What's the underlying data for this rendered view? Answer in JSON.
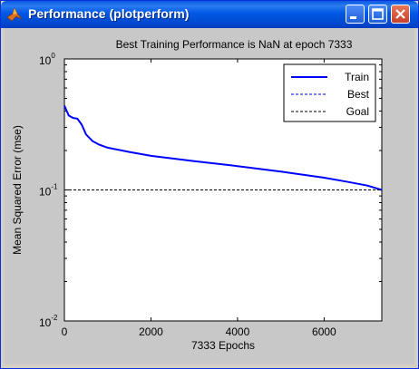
{
  "window": {
    "title": "Performance (plotperform)",
    "buttons": [
      "minimize",
      "maximize",
      "close"
    ]
  },
  "chart_data": {
    "type": "line",
    "title": "Best Training Performance is NaN at epoch 7333",
    "xlabel": "7333 Epochs",
    "ylabel": "Mean Squared Error  (mse)",
    "xlim": [
      0,
      7333
    ],
    "ylim": [
      0.01,
      1
    ],
    "yscale": "log",
    "x_ticks": [
      0,
      2000,
      4000,
      6000
    ],
    "x_tick_labels": [
      "0",
      "2000",
      "4000",
      "6000"
    ],
    "y_ticks": [
      0.01,
      0.1,
      1
    ],
    "y_tick_labels": [
      {
        "base": "10",
        "exp": "-2"
      },
      {
        "base": "10",
        "exp": "-1"
      },
      {
        "base": "10",
        "exp": "0"
      }
    ],
    "grid": false,
    "legend_position": "top-right",
    "series": [
      {
        "name": "Train",
        "color": "#0000ff",
        "style": "solid",
        "x": [
          0,
          100,
          200,
          300,
          400,
          500,
          650,
          800,
          1000,
          1500,
          2000,
          3000,
          4000,
          5000,
          6000,
          6500,
          7000,
          7333
        ],
        "y": [
          0.44,
          0.37,
          0.355,
          0.35,
          0.315,
          0.265,
          0.236,
          0.222,
          0.21,
          0.195,
          0.182,
          0.166,
          0.152,
          0.138,
          0.124,
          0.116,
          0.108,
          0.1
        ]
      },
      {
        "name": "Best",
        "color": "#0000ff",
        "style": "dotted",
        "x": [],
        "y": []
      },
      {
        "name": "Goal",
        "color": "#000000",
        "style": "dotted",
        "x": [
          0,
          7333
        ],
        "y": [
          0.1,
          0.1
        ]
      }
    ]
  }
}
